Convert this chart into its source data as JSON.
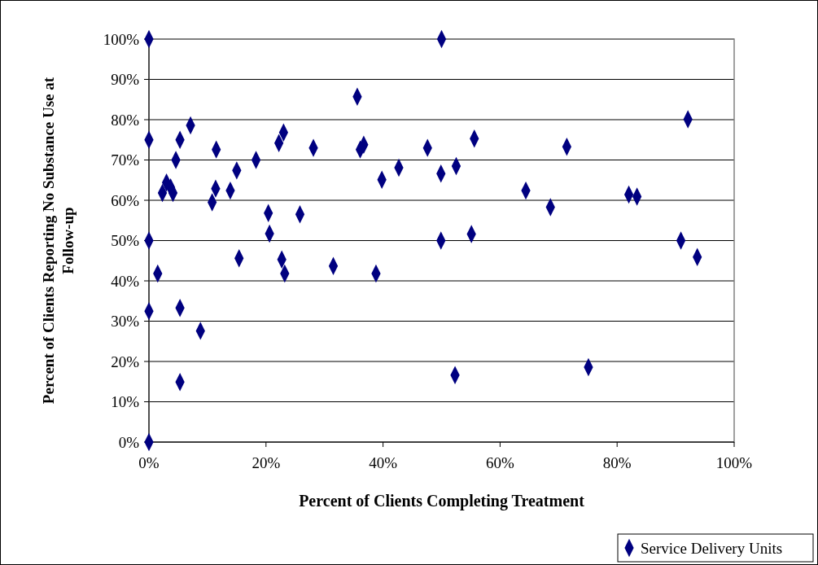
{
  "chart_data": {
    "type": "scatter",
    "xlabel": "Percent of Clients Completing Treatment",
    "ylabel": "Percent of Clients Reporting No Substance Use at Follow-up",
    "xlim": [
      0,
      100
    ],
    "ylim": [
      0,
      100
    ],
    "xticks": [
      {
        "value": 0,
        "label": "0%"
      },
      {
        "value": 20,
        "label": "20%"
      },
      {
        "value": 40,
        "label": "40%"
      },
      {
        "value": 60,
        "label": "60%"
      },
      {
        "value": 80,
        "label": "80%"
      },
      {
        "value": 100,
        "label": "100%"
      }
    ],
    "yticks": [
      {
        "value": 0,
        "label": "0%"
      },
      {
        "value": 10,
        "label": "10%"
      },
      {
        "value": 20,
        "label": "20%"
      },
      {
        "value": 30,
        "label": "30%"
      },
      {
        "value": 40,
        "label": "40%"
      },
      {
        "value": 50,
        "label": "50%"
      },
      {
        "value": 60,
        "label": "60%"
      },
      {
        "value": 70,
        "label": "70%"
      },
      {
        "value": 80,
        "label": "80%"
      },
      {
        "value": 90,
        "label": "90%"
      },
      {
        "value": 100,
        "label": "100%"
      }
    ],
    "grid": "y",
    "legend": "bottom right",
    "marker": "diamond",
    "series": [
      {
        "name": "Service Delivery Units",
        "color": "#000080",
        "x": [
          0,
          0,
          7.1,
          5.3,
          4.6,
          11.5,
          3.0,
          3.7,
          2.3,
          4.1,
          11.4,
          10.8,
          13.9,
          15.0,
          18.3,
          22.2,
          23.0,
          28.1,
          20.4,
          25.8,
          20.6,
          50,
          35.6,
          36.7,
          36.1,
          47.6,
          55.6,
          39.8,
          42.7,
          49.9,
          52.5,
          64.4,
          92.1,
          71.4,
          82.0,
          83.4,
          68.6,
          0,
          1.5,
          15.4,
          22.7,
          23.2,
          31.5,
          0,
          5.3,
          8.8,
          5.3,
          0,
          38.8,
          49.9,
          55.1,
          52.3,
          90.9,
          93.7,
          75.1
        ],
        "values": [
          100,
          75,
          78.6,
          75,
          70,
          72.6,
          64.4,
          63.2,
          61.8,
          61.8,
          62.9,
          59.5,
          62.4,
          67.4,
          70,
          74.2,
          76.8,
          73,
          56.8,
          56.5,
          51.7,
          100,
          85.7,
          73.8,
          72.6,
          73,
          75.3,
          65.1,
          68.1,
          66.6,
          68.5,
          62.4,
          80.1,
          73.3,
          61.4,
          60.9,
          58.3,
          50,
          41.8,
          45.6,
          45.3,
          41.8,
          43.7,
          32.5,
          33.3,
          27.6,
          14.9,
          0,
          41.8,
          50,
          51.6,
          16.6,
          50,
          45.9,
          18.6
        ]
      }
    ]
  }
}
